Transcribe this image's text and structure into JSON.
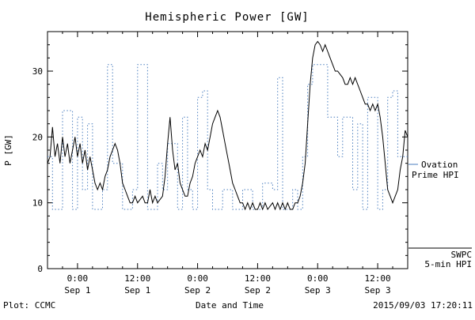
{
  "chart_data": {
    "type": "line",
    "title": "Hemispheric Power [GW]",
    "xlabel": "Date and Time",
    "ylabel": "P [GW]",
    "ylim": [
      0,
      36
    ],
    "yticks": [
      0,
      10,
      20,
      30
    ],
    "x_hours_range": [
      0,
      72
    ],
    "xticks": [
      {
        "hour": 6,
        "time": "0:00",
        "date": "Sep 1"
      },
      {
        "hour": 18,
        "time": "12:00",
        "date": "Sep 1"
      },
      {
        "hour": 30,
        "time": "0:00",
        "date": "Sep 2"
      },
      {
        "hour": 42,
        "time": "12:00",
        "date": "Sep 2"
      },
      {
        "hour": 54,
        "time": "0:00",
        "date": "Sep 3"
      },
      {
        "hour": 66,
        "time": "12:00",
        "date": "Sep 3"
      }
    ],
    "grid": false,
    "legend_position": "right",
    "series": [
      {
        "name": "Ovation Prime HPI",
        "color": "#4a7ebf",
        "line_style": "dotted-step",
        "points": [
          [
            0,
            17
          ],
          [
            1,
            9
          ],
          [
            3,
            24
          ],
          [
            5,
            9
          ],
          [
            6,
            23
          ],
          [
            7,
            12
          ],
          [
            8,
            22
          ],
          [
            9,
            9
          ],
          [
            11,
            12
          ],
          [
            12,
            31
          ],
          [
            13,
            16
          ],
          [
            15,
            9
          ],
          [
            17,
            12
          ],
          [
            18,
            31
          ],
          [
            20,
            9
          ],
          [
            22,
            16
          ],
          [
            23,
            12
          ],
          [
            24,
            19
          ],
          [
            26,
            9
          ],
          [
            27,
            23
          ],
          [
            28,
            12
          ],
          [
            29,
            9
          ],
          [
            30,
            26
          ],
          [
            31,
            27
          ],
          [
            32,
            12
          ],
          [
            33,
            9
          ],
          [
            35,
            12
          ],
          [
            37,
            9
          ],
          [
            39,
            12
          ],
          [
            41,
            9
          ],
          [
            43,
            13
          ],
          [
            45,
            12
          ],
          [
            46,
            29
          ],
          [
            47,
            9
          ],
          [
            49,
            12
          ],
          [
            50,
            9
          ],
          [
            51,
            17
          ],
          [
            52,
            28
          ],
          [
            53,
            31
          ],
          [
            56,
            23
          ],
          [
            58,
            17
          ],
          [
            59,
            23
          ],
          [
            61,
            12
          ],
          [
            62,
            22
          ],
          [
            63,
            9
          ],
          [
            64,
            26
          ],
          [
            66,
            9
          ],
          [
            67,
            12
          ],
          [
            68,
            26
          ],
          [
            69,
            27
          ],
          [
            70,
            17
          ],
          [
            72,
            17
          ]
        ]
      },
      {
        "name": "SWPC 5-min HPI",
        "color": "#000000",
        "line_style": "solid",
        "points": [
          [
            0,
            16
          ],
          [
            0.5,
            17
          ],
          [
            1,
            21.5
          ],
          [
            1.5,
            17
          ],
          [
            2,
            19
          ],
          [
            2.5,
            16
          ],
          [
            3,
            20
          ],
          [
            3.5,
            17
          ],
          [
            4,
            19
          ],
          [
            4.5,
            16
          ],
          [
            5,
            18
          ],
          [
            5.5,
            20
          ],
          [
            6,
            17
          ],
          [
            6.5,
            19
          ],
          [
            7,
            16
          ],
          [
            7.5,
            18
          ],
          [
            8,
            15
          ],
          [
            8.5,
            17
          ],
          [
            9,
            15
          ],
          [
            9.5,
            13
          ],
          [
            10,
            12
          ],
          [
            10.5,
            13
          ],
          [
            11,
            12
          ],
          [
            11.5,
            14
          ],
          [
            12,
            15
          ],
          [
            12.5,
            17
          ],
          [
            13,
            18
          ],
          [
            13.5,
            19
          ],
          [
            14,
            18
          ],
          [
            14.5,
            16
          ],
          [
            15,
            13
          ],
          [
            15.5,
            12
          ],
          [
            16,
            11
          ],
          [
            16.5,
            10
          ],
          [
            17,
            10
          ],
          [
            17.5,
            11
          ],
          [
            18,
            10
          ],
          [
            19,
            11
          ],
          [
            19.5,
            10
          ],
          [
            20,
            10
          ],
          [
            20.5,
            12
          ],
          [
            21,
            10
          ],
          [
            21.5,
            11
          ],
          [
            22,
            10
          ],
          [
            23,
            11
          ],
          [
            23.5,
            14
          ],
          [
            24,
            19
          ],
          [
            24.5,
            23
          ],
          [
            25,
            18
          ],
          [
            25.5,
            15
          ],
          [
            26,
            16
          ],
          [
            26.5,
            13
          ],
          [
            27,
            12
          ],
          [
            27.5,
            11
          ],
          [
            28,
            11
          ],
          [
            28.5,
            13
          ],
          [
            29,
            14
          ],
          [
            29.5,
            16
          ],
          [
            30,
            17
          ],
          [
            30.5,
            18
          ],
          [
            31,
            17
          ],
          [
            31.5,
            19
          ],
          [
            32,
            18
          ],
          [
            32.5,
            20
          ],
          [
            33,
            22
          ],
          [
            33.5,
            23
          ],
          [
            34,
            24
          ],
          [
            34.5,
            23
          ],
          [
            35,
            21
          ],
          [
            35.5,
            19
          ],
          [
            36,
            17
          ],
          [
            36.5,
            15
          ],
          [
            37,
            13
          ],
          [
            37.5,
            12
          ],
          [
            38,
            11
          ],
          [
            38.5,
            10
          ],
          [
            39,
            10
          ],
          [
            39.5,
            9
          ],
          [
            40,
            10
          ],
          [
            40.5,
            9
          ],
          [
            41,
            10
          ],
          [
            41.5,
            9
          ],
          [
            42,
            9
          ],
          [
            42.5,
            10
          ],
          [
            43,
            9
          ],
          [
            43.5,
            10
          ],
          [
            44,
            9
          ],
          [
            45,
            10
          ],
          [
            45.5,
            9
          ],
          [
            46,
            10
          ],
          [
            46.5,
            9
          ],
          [
            47,
            10
          ],
          [
            47.5,
            9
          ],
          [
            48,
            10
          ],
          [
            48.5,
            9
          ],
          [
            49,
            9
          ],
          [
            49.5,
            10
          ],
          [
            50,
            10
          ],
          [
            50.5,
            11
          ],
          [
            51,
            13
          ],
          [
            51.5,
            16
          ],
          [
            52,
            22
          ],
          [
            52.5,
            28
          ],
          [
            53,
            32
          ],
          [
            53.5,
            34
          ],
          [
            54,
            34.5
          ],
          [
            54.5,
            34
          ],
          [
            55,
            33
          ],
          [
            55.5,
            34
          ],
          [
            56,
            33
          ],
          [
            56.5,
            32
          ],
          [
            57,
            31
          ],
          [
            57.5,
            30
          ],
          [
            58,
            30
          ],
          [
            59,
            29
          ],
          [
            59.5,
            28
          ],
          [
            60,
            28
          ],
          [
            60.5,
            29
          ],
          [
            61,
            28
          ],
          [
            61.5,
            29
          ],
          [
            62,
            28
          ],
          [
            62.5,
            27
          ],
          [
            63,
            26
          ],
          [
            63.5,
            25
          ],
          [
            64,
            25
          ],
          [
            64.5,
            24
          ],
          [
            65,
            25
          ],
          [
            65.5,
            24
          ],
          [
            66,
            25
          ],
          [
            66.5,
            23
          ],
          [
            67,
            20
          ],
          [
            67.5,
            16
          ],
          [
            68,
            12
          ],
          [
            68.5,
            11
          ],
          [
            69,
            10
          ],
          [
            69.5,
            11
          ],
          [
            70,
            12
          ],
          [
            70.5,
            15
          ],
          [
            71,
            17
          ],
          [
            71.5,
            21
          ],
          [
            72,
            20
          ]
        ]
      }
    ]
  },
  "legend": {
    "ovation": {
      "line1": "Ovation",
      "line2": "Prime HPI",
      "color": "#4a7ebf"
    },
    "swpc": {
      "line1": "SWPC",
      "line2": "5-min HPI",
      "color": "#000000"
    }
  },
  "footer": {
    "plot_credit": "Plot: CCMC",
    "timestamp": "2015/09/03 17:20:11"
  }
}
